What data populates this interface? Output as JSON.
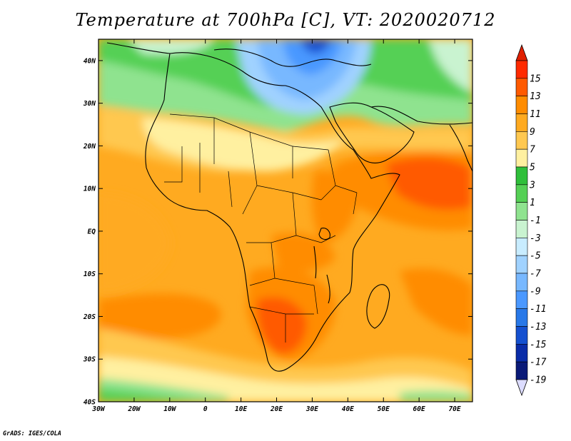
{
  "title": "Temperature at 700hPa [C], VT: 2020020712",
  "credit": "GrADS: IGES/COLA",
  "map": {
    "lon_range": [
      -30,
      75
    ],
    "lat_range": [
      -40,
      45
    ],
    "lon_ticks": [
      "30W",
      "20W",
      "10W",
      "0",
      "10E",
      "20E",
      "30E",
      "40E",
      "50E",
      "60E",
      "70E"
    ],
    "lon_tick_values": [
      -30,
      -20,
      -10,
      0,
      10,
      20,
      30,
      40,
      50,
      60,
      70
    ],
    "lat_ticks": [
      "40N",
      "30N",
      "20N",
      "10N",
      "EQ",
      "10S",
      "20S",
      "30S",
      "40S"
    ],
    "lat_tick_values": [
      40,
      30,
      20,
      10,
      0,
      -10,
      -20,
      -30,
      -40
    ]
  },
  "colorbar": {
    "labels": [
      "15",
      "13",
      "11",
      "9",
      "7",
      "5",
      "3",
      "1",
      "-1",
      "-3",
      "-5",
      "-7",
      "-9",
      "-11",
      "-13",
      "-15",
      "-17",
      "-19"
    ],
    "colors": [
      "#ff2a00",
      "#ff5a00",
      "#ff8c00",
      "#ffaa20",
      "#ffc850",
      "#fff0a0",
      "#2fbf3a",
      "#55d055",
      "#8fe38f",
      "#c9f3d0",
      "#c8ecff",
      "#a0d2ff",
      "#78b8ff",
      "#4a98ff",
      "#2878e8",
      "#1450d0",
      "#0a2ca8",
      "#0a1a78"
    ],
    "top_arrow_color": "#e02000",
    "bottom_arrow_color": "#dcdcff"
  }
}
